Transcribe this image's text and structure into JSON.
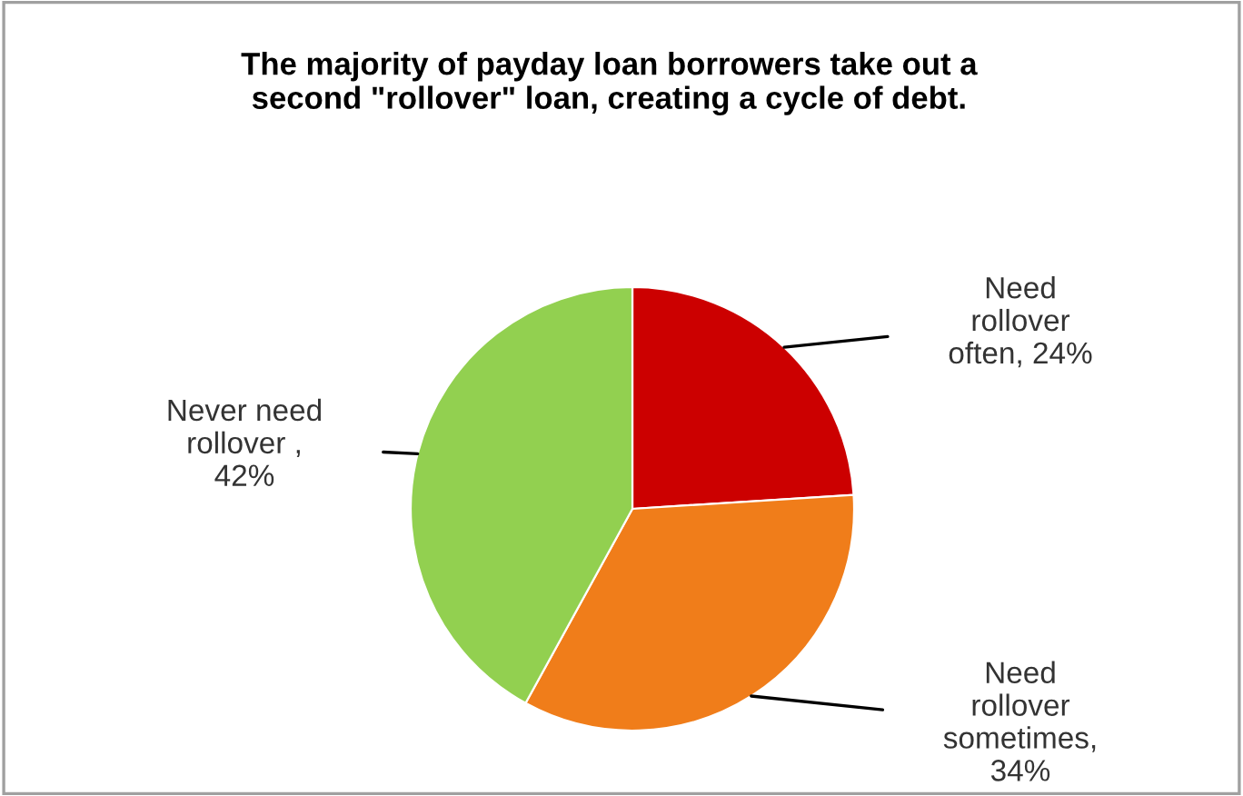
{
  "chart_data": {
    "type": "pie",
    "title": "The majority of payday loan borrowers take out a\nsecond \"rollover\" loan, creating a cycle of debt.",
    "categories": [
      "Need\nrollover\noften, 24%",
      "Need\nrollover\nsometimes,\n34%",
      "Never need\nrollover ,\n42%"
    ],
    "values": [
      24,
      34,
      42
    ],
    "colors": [
      "#cc0000",
      "#f07d1a",
      "#92d050"
    ]
  }
}
